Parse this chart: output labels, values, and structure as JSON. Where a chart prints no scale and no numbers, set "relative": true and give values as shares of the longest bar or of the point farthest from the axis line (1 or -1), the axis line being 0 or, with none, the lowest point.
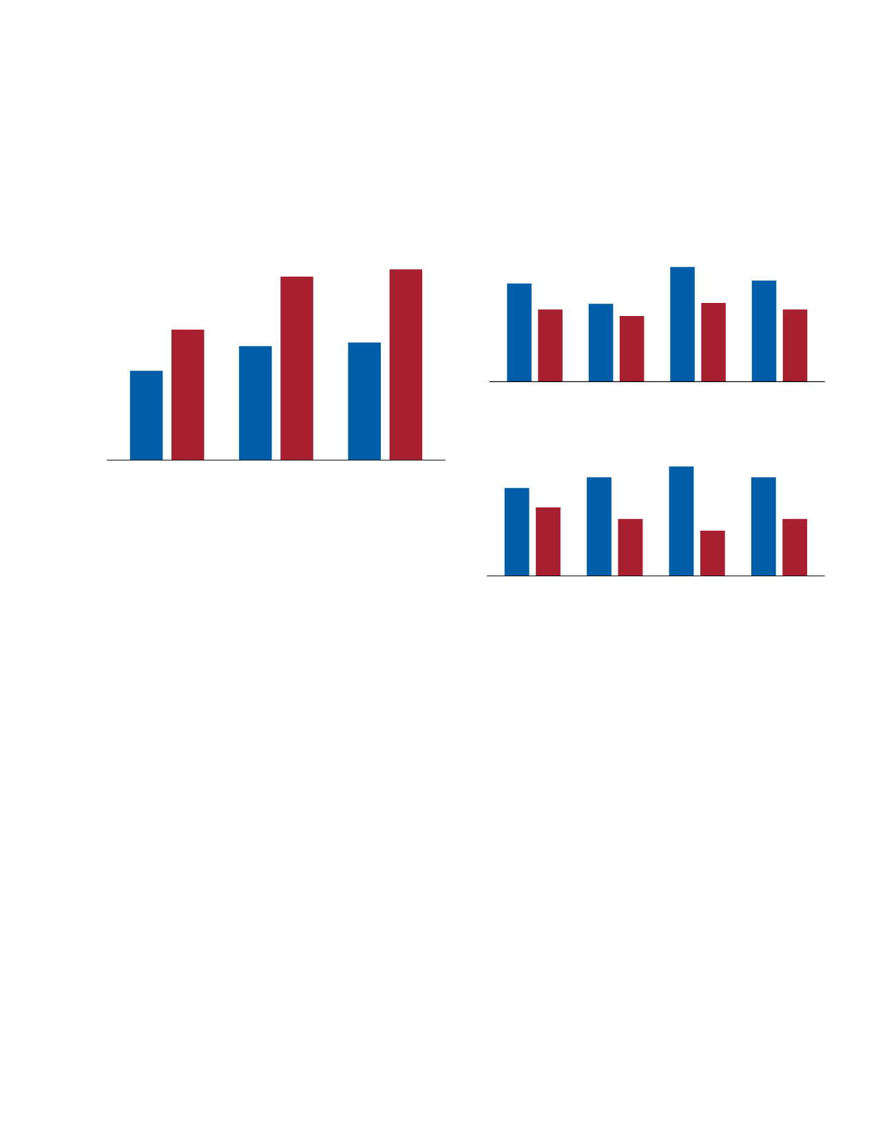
{
  "chart_data": [
    {
      "type": "bar",
      "relative": true,
      "categories": [
        null,
        null,
        null
      ],
      "series": [
        {
          "color": "#005ea8",
          "values": [
            0.468,
            0.597,
            0.616
          ]
        },
        {
          "color": "#a82030",
          "values": [
            0.684,
            0.962,
            1
          ]
        }
      ]
    },
    {
      "type": "bar",
      "relative": true,
      "categories": [
        null,
        null,
        null,
        null
      ],
      "series": [
        {
          "color": "#005ea8",
          "values": [
            0.855,
            0.679,
            1,
            0.881
          ]
        },
        {
          "color": "#a82030",
          "values": [
            0.629,
            0.572,
            0.686,
            0.629
          ]
        }
      ]
    },
    {
      "type": "bar",
      "relative": true,
      "categories": [
        null,
        null,
        null,
        null
      ],
      "series": [
        {
          "color": "#005ea8",
          "values": [
            0.803,
            0.901,
            1,
            0.901
          ]
        },
        {
          "color": "#a82030",
          "values": [
            0.625,
            0.52,
            0.414,
            0.52
          ]
        }
      ]
    }
  ]
}
